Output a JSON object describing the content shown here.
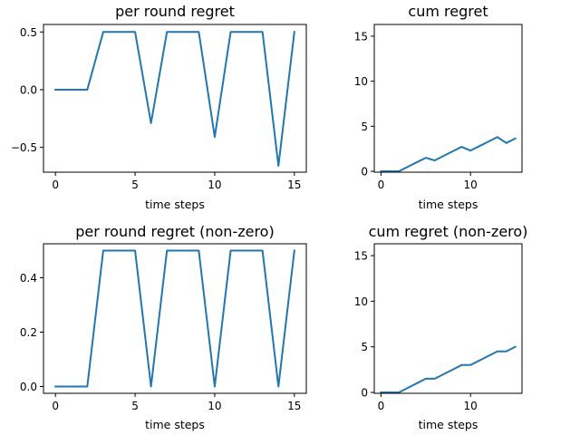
{
  "colors": {
    "series": "#1f77b4"
  },
  "chart_data": [
    {
      "id": "per-round-regret",
      "type": "line",
      "title": "per round regret",
      "xlabel": "time steps",
      "ylabel": "",
      "xlim": [
        -0.75,
        15.75
      ],
      "ylim": [
        -0.715,
        0.565
      ],
      "xticks": [
        0,
        5,
        10,
        15
      ],
      "xtick_labels": [
        "0",
        "5",
        "10",
        "15"
      ],
      "yticks": [
        0.5,
        0.0,
        -0.5
      ],
      "ytick_labels": [
        "0.5",
        "0.0",
        "−0.5"
      ],
      "grid": false,
      "x": [
        0,
        1,
        2,
        3,
        4,
        5,
        6,
        7,
        8,
        9,
        10,
        11,
        12,
        13,
        14,
        15
      ],
      "series": [
        {
          "values": [
            0,
            0,
            0,
            0.5,
            0.5,
            0.5,
            -0.29,
            0.5,
            0.5,
            0.5,
            -0.41,
            0.5,
            0.5,
            0.5,
            -0.66,
            0.5
          ]
        }
      ]
    },
    {
      "id": "cum-regret",
      "type": "line",
      "title": "cum regret",
      "xlabel": "time steps",
      "ylabel": "",
      "xlim": [
        -0.75,
        15.75
      ],
      "ylim": [
        -0.1,
        16.3
      ],
      "xticks": [
        0,
        10
      ],
      "xtick_labels": [
        "0",
        "10"
      ],
      "yticks": [
        0,
        5,
        10,
        15
      ],
      "ytick_labels": [
        "0",
        "5",
        "10",
        "15"
      ],
      "grid": false,
      "x": [
        0,
        1,
        2,
        3,
        4,
        5,
        6,
        7,
        8,
        9,
        10,
        11,
        12,
        13,
        14,
        15
      ],
      "series": [
        {
          "values": [
            0,
            0,
            0,
            0.5,
            1.0,
            1.5,
            1.21,
            1.71,
            2.21,
            2.71,
            2.3,
            2.8,
            3.3,
            3.8,
            3.14,
            3.64
          ]
        }
      ]
    },
    {
      "id": "per-round-regret-nonzero",
      "type": "line",
      "title": "per round regret (non-zero)",
      "xlabel": "time steps",
      "ylabel": "",
      "xlim": [
        -0.75,
        15.75
      ],
      "ylim": [
        -0.025,
        0.525
      ],
      "xticks": [
        0,
        5,
        10,
        15
      ],
      "xtick_labels": [
        "0",
        "5",
        "10",
        "15"
      ],
      "yticks": [
        0.0,
        0.2,
        0.4
      ],
      "ytick_labels": [
        "0.0",
        "0.2",
        "0.4"
      ],
      "grid": false,
      "x": [
        0,
        1,
        2,
        3,
        4,
        5,
        6,
        7,
        8,
        9,
        10,
        11,
        12,
        13,
        14,
        15
      ],
      "series": [
        {
          "values": [
            0,
            0,
            0,
            0.5,
            0.5,
            0.5,
            0,
            0.5,
            0.5,
            0.5,
            0,
            0.5,
            0.5,
            0.5,
            0,
            0.5
          ]
        }
      ]
    },
    {
      "id": "cum-regret-nonzero",
      "type": "line",
      "title": "cum regret (non-zero)",
      "xlabel": "time steps",
      "ylabel": "",
      "xlim": [
        -0.75,
        15.75
      ],
      "ylim": [
        -0.1,
        16.3
      ],
      "xticks": [
        0,
        10
      ],
      "xtick_labels": [
        "0",
        "10"
      ],
      "yticks": [
        0,
        5,
        10,
        15
      ],
      "ytick_labels": [
        "0",
        "5",
        "10",
        "15"
      ],
      "grid": false,
      "x": [
        0,
        1,
        2,
        3,
        4,
        5,
        6,
        7,
        8,
        9,
        10,
        11,
        12,
        13,
        14,
        15
      ],
      "series": [
        {
          "values": [
            0,
            0,
            0,
            0.5,
            1.0,
            1.5,
            1.5,
            2.0,
            2.5,
            3.0,
            3.0,
            3.5,
            4.0,
            4.5,
            4.5,
            5.0
          ]
        }
      ]
    }
  ]
}
